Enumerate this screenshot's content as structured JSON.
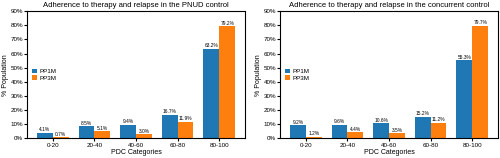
{
  "chart_data": [
    {
      "type": "bar",
      "title": "Adherence to therapy and relapse in the PNUD control",
      "x_label": "PDC Categories",
      "y_label": "% Population",
      "categories": [
        "0-20",
        "20-40",
        "40-60",
        "60-80",
        "80-100"
      ],
      "series": [
        {
          "name": "PP1M",
          "values": [
            4.1,
            8.5,
            9.4,
            16.7,
            63.2
          ],
          "value_labels": [
            "4.1%",
            "8.5%",
            "9.4%",
            "16.7%",
            "63.2%"
          ]
        },
        {
          "name": "PP3M",
          "values": [
            0.7,
            5.1,
            3.0,
            11.9,
            79.2
          ],
          "value_labels": [
            "0.7%",
            "5.1%",
            "3.0%",
            "11.9%",
            "79.2%"
          ]
        }
      ],
      "ylim": [
        0,
        90
      ],
      "yticks": [
        {
          "value": 0,
          "label": "0%"
        },
        {
          "value": 10,
          "label": "10%"
        },
        {
          "value": 20,
          "label": "20%"
        },
        {
          "value": 30,
          "label": "30%"
        },
        {
          "value": 40,
          "label": "40%"
        },
        {
          "value": 50,
          "label": "50%"
        },
        {
          "value": 60,
          "label": "60%"
        },
        {
          "value": 70,
          "label": "70%"
        },
        {
          "value": 80,
          "label": "80%"
        },
        {
          "value": 90,
          "label": "90%"
        }
      ],
      "data_labels": true,
      "legend": "center left"
    },
    {
      "type": "bar",
      "title": "Adherence to therapy and relapse in the concurrent control",
      "x_label": "PDC Categories",
      "y_label": "% Population",
      "categories": [
        "0-20",
        "20-40",
        "40-60",
        "60-80",
        "80-100"
      ],
      "series": [
        {
          "name": "PP1M",
          "values": [
            9.2,
            9.6,
            10.6,
            15.2,
            55.3
          ],
          "value_labels": [
            "9.2%",
            "9.6%",
            "10.6%",
            "15.2%",
            "55.3%"
          ]
        },
        {
          "name": "PP3M",
          "values": [
            1.2,
            4.4,
            3.5,
            11.2,
            79.7
          ],
          "value_labels": [
            "1.2%",
            "4.4%",
            "3.5%",
            "11.2%",
            "79.7%"
          ]
        }
      ],
      "ylim": [
        0,
        90
      ],
      "yticks": [
        {
          "value": 0,
          "label": "0%"
        },
        {
          "value": 10,
          "label": "10%"
        },
        {
          "value": 20,
          "label": "20%"
        },
        {
          "value": 30,
          "label": "30%"
        },
        {
          "value": 40,
          "label": "40%"
        },
        {
          "value": 50,
          "label": "50%"
        },
        {
          "value": 60,
          "label": "60%"
        },
        {
          "value": 70,
          "label": "70%"
        },
        {
          "value": 80,
          "label": "80%"
        },
        {
          "value": 90,
          "label": "90%"
        }
      ],
      "data_labels": true,
      "legend": "center left"
    }
  ]
}
